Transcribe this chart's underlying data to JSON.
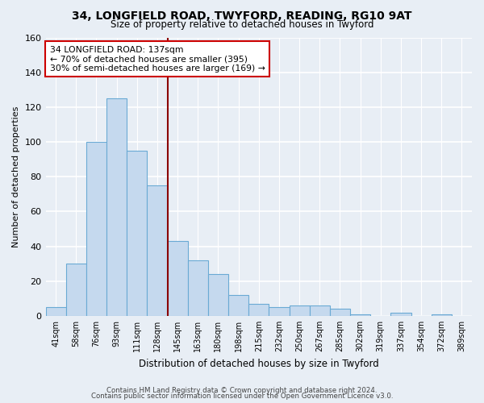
{
  "title1": "34, LONGFIELD ROAD, TWYFORD, READING, RG10 9AT",
  "title2": "Size of property relative to detached houses in Twyford",
  "xlabel": "Distribution of detached houses by size in Twyford",
  "ylabel": "Number of detached properties",
  "bin_labels": [
    "41sqm",
    "58sqm",
    "76sqm",
    "93sqm",
    "111sqm",
    "128sqm",
    "145sqm",
    "163sqm",
    "180sqm",
    "198sqm",
    "215sqm",
    "232sqm",
    "250sqm",
    "267sqm",
    "285sqm",
    "302sqm",
    "319sqm",
    "337sqm",
    "354sqm",
    "372sqm",
    "389sqm"
  ],
  "bar_heights": [
    5,
    30,
    100,
    125,
    95,
    75,
    43,
    32,
    24,
    12,
    7,
    5,
    6,
    6,
    4,
    1,
    0,
    2,
    0,
    1,
    0
  ],
  "bar_color": "#c5d9ee",
  "bar_edge_color": "#6aaad4",
  "vline_x": 5.5,
  "vline_color": "#8b0000",
  "annotation_title": "34 LONGFIELD ROAD: 137sqm",
  "annotation_line1": "← 70% of detached houses are smaller (395)",
  "annotation_line2": "30% of semi-detached houses are larger (169) →",
  "annotation_box_color": "#cc0000",
  "ylim": [
    0,
    160
  ],
  "yticks": [
    0,
    20,
    40,
    60,
    80,
    100,
    120,
    140,
    160
  ],
  "footer1": "Contains HM Land Registry data © Crown copyright and database right 2024.",
  "footer2": "Contains public sector information licensed under the Open Government Licence v3.0.",
  "bg_color": "#e8eef5",
  "grid_color": "#ffffff"
}
